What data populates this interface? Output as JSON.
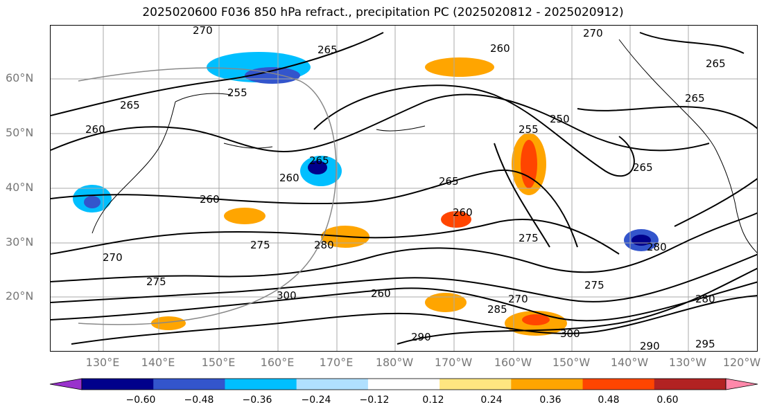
{
  "title": "2025020600 F036 850 hPa refract., precipitation PC (2025020812 - 2025020912)",
  "lat_labels": [
    "60°N",
    "50°N",
    "40°N",
    "30°N",
    "20°N"
  ],
  "lon_labels": [
    "130°E",
    "140°E",
    "150°E",
    "160°E",
    "170°E",
    "180°W",
    "170°W",
    "160°W",
    "150°W",
    "140°W",
    "130°W",
    "120°W"
  ],
  "colorbar": {
    "colors": [
      "#9932cc",
      "#00008b",
      "#3355cc",
      "#00bfff",
      "#b0e0ff",
      "#ffffff",
      "#ffe680",
      "#ffa500",
      "#ff4500",
      "#b22222",
      "#ff88aa"
    ],
    "ticks": [
      "−0.60",
      "−0.48",
      "−0.36",
      "−0.24",
      "−0.12",
      "0.12",
      "0.24",
      "0.36",
      "0.48",
      "0.60"
    ]
  },
  "contour_labels": [
    "270",
    "270",
    "260",
    "265",
    "265",
    "255",
    "265",
    "260",
    "250",
    "255",
    "265",
    "260",
    "265",
    "265",
    "260",
    "260",
    "265",
    "270",
    "275",
    "280",
    "275",
    "280",
    "275",
    "300",
    "260",
    "275",
    "290",
    "290",
    "285",
    "295",
    "300",
    "270",
    "280"
  ]
}
